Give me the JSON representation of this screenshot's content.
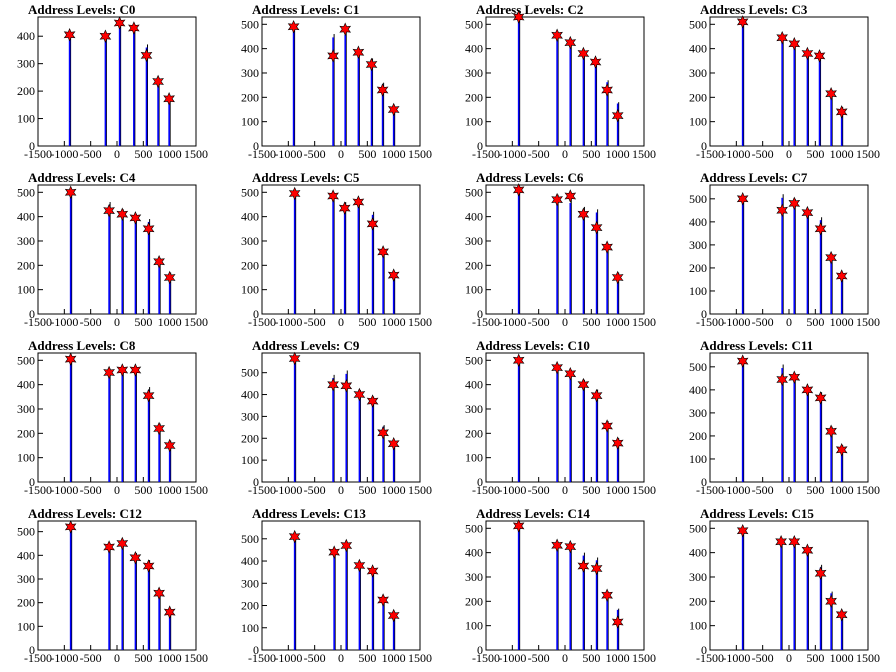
{
  "chart_data": [
    {
      "type": "bar",
      "title": "Address Levels: C0",
      "xlim": [
        -1500,
        1500
      ],
      "ylim": [
        0,
        470
      ],
      "yticks": [
        0,
        100,
        200,
        300,
        400
      ],
      "bins": [
        {
          "x": -900,
          "y": 405
        },
        {
          "x": -220,
          "y": 405
        },
        {
          "x": 50,
          "y": 450
        },
        {
          "x": 320,
          "y": 435
        },
        {
          "x": 560,
          "y": 370
        },
        {
          "x": 780,
          "y": 240
        },
        {
          "x": 990,
          "y": 178
        }
      ],
      "markers": [
        {
          "x": -900,
          "y": 405
        },
        {
          "x": -220,
          "y": 400
        },
        {
          "x": 50,
          "y": 448
        },
        {
          "x": 320,
          "y": 430
        },
        {
          "x": 560,
          "y": 330
        },
        {
          "x": 780,
          "y": 235
        },
        {
          "x": 990,
          "y": 172
        }
      ]
    },
    {
      "type": "bar",
      "title": "Address Levels: C1",
      "xlim": [
        -1500,
        1500
      ],
      "ylim": [
        0,
        530
      ],
      "yticks": [
        0,
        100,
        200,
        300,
        400,
        500
      ],
      "bins": [
        {
          "x": -900,
          "y": 490
        },
        {
          "x": -150,
          "y": 460
        },
        {
          "x": 80,
          "y": 470
        },
        {
          "x": 330,
          "y": 390
        },
        {
          "x": 580,
          "y": 360
        },
        {
          "x": 790,
          "y": 260
        },
        {
          "x": 1000,
          "y": 160
        }
      ],
      "markers": [
        {
          "x": -900,
          "y": 490
        },
        {
          "x": -150,
          "y": 370
        },
        {
          "x": 80,
          "y": 480
        },
        {
          "x": 330,
          "y": 385
        },
        {
          "x": 580,
          "y": 335
        },
        {
          "x": 790,
          "y": 230
        },
        {
          "x": 1000,
          "y": 150
        }
      ]
    },
    {
      "type": "bar",
      "title": "Address Levels: C2",
      "xlim": [
        -1500,
        1500
      ],
      "ylim": [
        0,
        530
      ],
      "yticks": [
        0,
        100,
        200,
        300,
        400,
        500
      ],
      "bins": [
        {
          "x": -880,
          "y": 530
        },
        {
          "x": -150,
          "y": 450
        },
        {
          "x": 100,
          "y": 430
        },
        {
          "x": 350,
          "y": 380
        },
        {
          "x": 580,
          "y": 350
        },
        {
          "x": 800,
          "y": 270
        },
        {
          "x": 1000,
          "y": 180
        }
      ],
      "markers": [
        {
          "x": -880,
          "y": 530
        },
        {
          "x": -150,
          "y": 455
        },
        {
          "x": 100,
          "y": 425
        },
        {
          "x": 350,
          "y": 380
        },
        {
          "x": 580,
          "y": 345
        },
        {
          "x": 800,
          "y": 230
        },
        {
          "x": 1000,
          "y": 125
        }
      ]
    },
    {
      "type": "bar",
      "title": "Address Levels: C3",
      "xlim": [
        -1500,
        1500
      ],
      "ylim": [
        0,
        530
      ],
      "yticks": [
        0,
        100,
        200,
        300,
        400,
        500
      ],
      "bins": [
        {
          "x": -880,
          "y": 510
        },
        {
          "x": -130,
          "y": 450
        },
        {
          "x": 100,
          "y": 430
        },
        {
          "x": 350,
          "y": 380
        },
        {
          "x": 580,
          "y": 380
        },
        {
          "x": 800,
          "y": 230
        },
        {
          "x": 1000,
          "y": 160
        }
      ],
      "markers": [
        {
          "x": -880,
          "y": 510
        },
        {
          "x": -130,
          "y": 445
        },
        {
          "x": 100,
          "y": 420
        },
        {
          "x": 350,
          "y": 380
        },
        {
          "x": 580,
          "y": 370
        },
        {
          "x": 800,
          "y": 215
        },
        {
          "x": 1000,
          "y": 140
        }
      ]
    },
    {
      "type": "bar",
      "title": "Address Levels: C4",
      "xlim": [
        -1500,
        1500
      ],
      "ylim": [
        0,
        530
      ],
      "yticks": [
        0,
        100,
        200,
        300,
        400,
        500
      ],
      "bins": [
        {
          "x": -880,
          "y": 510
        },
        {
          "x": -150,
          "y": 460
        },
        {
          "x": 100,
          "y": 430
        },
        {
          "x": 350,
          "y": 410
        },
        {
          "x": 600,
          "y": 390
        },
        {
          "x": 800,
          "y": 230
        },
        {
          "x": 1000,
          "y": 170
        }
      ],
      "markers": [
        {
          "x": -880,
          "y": 500
        },
        {
          "x": -150,
          "y": 425
        },
        {
          "x": 100,
          "y": 410
        },
        {
          "x": 350,
          "y": 395
        },
        {
          "x": 600,
          "y": 350
        },
        {
          "x": 800,
          "y": 215
        },
        {
          "x": 1000,
          "y": 150
        }
      ]
    },
    {
      "type": "bar",
      "title": "Address Levels: C5",
      "xlim": [
        -1500,
        1500
      ],
      "ylim": [
        0,
        530
      ],
      "yticks": [
        0,
        100,
        200,
        300,
        400,
        500
      ],
      "bins": [
        {
          "x": -880,
          "y": 500
        },
        {
          "x": -150,
          "y": 490
        },
        {
          "x": 70,
          "y": 460
        },
        {
          "x": 330,
          "y": 460
        },
        {
          "x": 600,
          "y": 420
        },
        {
          "x": 800,
          "y": 260
        },
        {
          "x": 1000,
          "y": 170
        }
      ],
      "markers": [
        {
          "x": -880,
          "y": 495
        },
        {
          "x": -150,
          "y": 485
        },
        {
          "x": 70,
          "y": 435
        },
        {
          "x": 330,
          "y": 460
        },
        {
          "x": 600,
          "y": 370
        },
        {
          "x": 800,
          "y": 255
        },
        {
          "x": 1000,
          "y": 160
        }
      ]
    },
    {
      "type": "bar",
      "title": "Address Levels: C6",
      "xlim": [
        -1500,
        1500
      ],
      "ylim": [
        0,
        530
      ],
      "yticks": [
        0,
        100,
        200,
        300,
        400,
        500
      ],
      "bins": [
        {
          "x": -880,
          "y": 510
        },
        {
          "x": -150,
          "y": 490
        },
        {
          "x": 100,
          "y": 470
        },
        {
          "x": 350,
          "y": 440
        },
        {
          "x": 600,
          "y": 430
        },
        {
          "x": 800,
          "y": 280
        },
        {
          "x": 1000,
          "y": 170
        }
      ],
      "markers": [
        {
          "x": -880,
          "y": 510
        },
        {
          "x": -150,
          "y": 470
        },
        {
          "x": 100,
          "y": 485
        },
        {
          "x": 350,
          "y": 410
        },
        {
          "x": 600,
          "y": 355
        },
        {
          "x": 800,
          "y": 275
        },
        {
          "x": 1000,
          "y": 150
        }
      ]
    },
    {
      "type": "bar",
      "title": "Address Levels: C7",
      "xlim": [
        -1500,
        1500
      ],
      "ylim": [
        0,
        560
      ],
      "yticks": [
        0,
        100,
        200,
        300,
        400,
        500
      ],
      "bins": [
        {
          "x": -880,
          "y": 500
        },
        {
          "x": -130,
          "y": 520
        },
        {
          "x": 100,
          "y": 500
        },
        {
          "x": 350,
          "y": 450
        },
        {
          "x": 600,
          "y": 420
        },
        {
          "x": 800,
          "y": 260
        },
        {
          "x": 1000,
          "y": 170
        }
      ],
      "markers": [
        {
          "x": -880,
          "y": 500
        },
        {
          "x": -130,
          "y": 450
        },
        {
          "x": 100,
          "y": 480
        },
        {
          "x": 350,
          "y": 440
        },
        {
          "x": 600,
          "y": 370
        },
        {
          "x": 800,
          "y": 245
        },
        {
          "x": 1000,
          "y": 165
        }
      ]
    },
    {
      "type": "bar",
      "title": "Address Levels: C8",
      "xlim": [
        -1500,
        1500
      ],
      "ylim": [
        0,
        530
      ],
      "yticks": [
        0,
        100,
        200,
        300,
        400,
        500
      ],
      "bins": [
        {
          "x": -880,
          "y": 510
        },
        {
          "x": -150,
          "y": 460
        },
        {
          "x": 100,
          "y": 470
        },
        {
          "x": 350,
          "y": 460
        },
        {
          "x": 600,
          "y": 390
        },
        {
          "x": 800,
          "y": 240
        },
        {
          "x": 1000,
          "y": 170
        }
      ],
      "markers": [
        {
          "x": -880,
          "y": 505
        },
        {
          "x": -150,
          "y": 450
        },
        {
          "x": 100,
          "y": 460
        },
        {
          "x": 350,
          "y": 460
        },
        {
          "x": 600,
          "y": 355
        },
        {
          "x": 800,
          "y": 220
        },
        {
          "x": 1000,
          "y": 150
        }
      ]
    },
    {
      "type": "bar",
      "title": "Address Levels: C9",
      "xlim": [
        -1500,
        1500
      ],
      "ylim": [
        0,
        590
      ],
      "yticks": [
        0,
        100,
        200,
        300,
        400,
        500
      ],
      "bins": [
        {
          "x": -880,
          "y": 570
        },
        {
          "x": -150,
          "y": 490
        },
        {
          "x": 100,
          "y": 510
        },
        {
          "x": 350,
          "y": 420
        },
        {
          "x": 600,
          "y": 390
        },
        {
          "x": 800,
          "y": 260
        },
        {
          "x": 1000,
          "y": 190
        }
      ],
      "markers": [
        {
          "x": -880,
          "y": 565
        },
        {
          "x": -150,
          "y": 445
        },
        {
          "x": 100,
          "y": 440
        },
        {
          "x": 350,
          "y": 400
        },
        {
          "x": 600,
          "y": 370
        },
        {
          "x": 800,
          "y": 225
        },
        {
          "x": 1000,
          "y": 175
        }
      ]
    },
    {
      "type": "bar",
      "title": "Address Levels: C10",
      "xlim": [
        -1500,
        1500
      ],
      "ylim": [
        0,
        530
      ],
      "yticks": [
        0,
        100,
        200,
        300,
        400,
        500
      ],
      "bins": [
        {
          "x": -880,
          "y": 510
        },
        {
          "x": -150,
          "y": 480
        },
        {
          "x": 100,
          "y": 460
        },
        {
          "x": 350,
          "y": 420
        },
        {
          "x": 600,
          "y": 380
        },
        {
          "x": 800,
          "y": 250
        },
        {
          "x": 1000,
          "y": 180
        }
      ],
      "markers": [
        {
          "x": -880,
          "y": 500
        },
        {
          "x": -150,
          "y": 470
        },
        {
          "x": 100,
          "y": 445
        },
        {
          "x": 350,
          "y": 400
        },
        {
          "x": 600,
          "y": 355
        },
        {
          "x": 800,
          "y": 230
        },
        {
          "x": 1000,
          "y": 160
        }
      ]
    },
    {
      "type": "bar",
      "title": "Address Levels: C11",
      "xlim": [
        -1500,
        1500
      ],
      "ylim": [
        0,
        560
      ],
      "yticks": [
        0,
        100,
        200,
        300,
        400,
        500
      ],
      "bins": [
        {
          "x": -880,
          "y": 530
        },
        {
          "x": -130,
          "y": 510
        },
        {
          "x": 100,
          "y": 470
        },
        {
          "x": 350,
          "y": 410
        },
        {
          "x": 600,
          "y": 390
        },
        {
          "x": 800,
          "y": 240
        },
        {
          "x": 1000,
          "y": 160
        }
      ],
      "markers": [
        {
          "x": -880,
          "y": 525
        },
        {
          "x": -130,
          "y": 445
        },
        {
          "x": 100,
          "y": 455
        },
        {
          "x": 350,
          "y": 400
        },
        {
          "x": 600,
          "y": 365
        },
        {
          "x": 800,
          "y": 220
        },
        {
          "x": 1000,
          "y": 140
        }
      ]
    },
    {
      "type": "bar",
      "title": "Address Levels: C12",
      "xlim": [
        -1500,
        1500
      ],
      "ylim": [
        0,
        545
      ],
      "yticks": [
        0,
        100,
        200,
        300,
        400,
        500
      ],
      "bins": [
        {
          "x": -880,
          "y": 520
        },
        {
          "x": -150,
          "y": 450
        },
        {
          "x": 100,
          "y": 460
        },
        {
          "x": 350,
          "y": 410
        },
        {
          "x": 600,
          "y": 380
        },
        {
          "x": 800,
          "y": 250
        },
        {
          "x": 1000,
          "y": 170
        }
      ],
      "markers": [
        {
          "x": -880,
          "y": 520
        },
        {
          "x": -150,
          "y": 435
        },
        {
          "x": 100,
          "y": 450
        },
        {
          "x": 350,
          "y": 390
        },
        {
          "x": 600,
          "y": 355
        },
        {
          "x": 800,
          "y": 240
        },
        {
          "x": 1000,
          "y": 160
        }
      ]
    },
    {
      "type": "bar",
      "title": "Address Levels: C13",
      "xlim": [
        -1500,
        1500
      ],
      "ylim": [
        0,
        580
      ],
      "yticks": [
        0,
        100,
        200,
        300,
        400,
        500
      ],
      "bins": [
        {
          "x": -880,
          "y": 520
        },
        {
          "x": -130,
          "y": 450
        },
        {
          "x": 100,
          "y": 480
        },
        {
          "x": 350,
          "y": 390
        },
        {
          "x": 600,
          "y": 370
        },
        {
          "x": 800,
          "y": 240
        },
        {
          "x": 1000,
          "y": 170
        }
      ],
      "markers": [
        {
          "x": -880,
          "y": 510
        },
        {
          "x": -130,
          "y": 440
        },
        {
          "x": 100,
          "y": 470
        },
        {
          "x": 350,
          "y": 380
        },
        {
          "x": 600,
          "y": 355
        },
        {
          "x": 800,
          "y": 225
        },
        {
          "x": 1000,
          "y": 155
        }
      ]
    },
    {
      "type": "bar",
      "title": "Address Levels: C14",
      "xlim": [
        -1500,
        1500
      ],
      "ylim": [
        0,
        530
      ],
      "yticks": [
        0,
        100,
        200,
        300,
        400,
        500
      ],
      "bins": [
        {
          "x": -880,
          "y": 520
        },
        {
          "x": -150,
          "y": 440
        },
        {
          "x": 100,
          "y": 440
        },
        {
          "x": 350,
          "y": 400
        },
        {
          "x": 600,
          "y": 380
        },
        {
          "x": 800,
          "y": 240
        },
        {
          "x": 1000,
          "y": 170
        }
      ],
      "markers": [
        {
          "x": -880,
          "y": 510
        },
        {
          "x": -150,
          "y": 430
        },
        {
          "x": 100,
          "y": 425
        },
        {
          "x": 350,
          "y": 345
        },
        {
          "x": 600,
          "y": 335
        },
        {
          "x": 800,
          "y": 225
        },
        {
          "x": 1000,
          "y": 115
        }
      ]
    },
    {
      "type": "bar",
      "title": "Address Levels: C15",
      "xlim": [
        -1500,
        1500
      ],
      "ylim": [
        0,
        530
      ],
      "yticks": [
        0,
        100,
        200,
        300,
        400,
        500
      ],
      "bins": [
        {
          "x": -880,
          "y": 500
        },
        {
          "x": -150,
          "y": 440
        },
        {
          "x": 100,
          "y": 460
        },
        {
          "x": 350,
          "y": 420
        },
        {
          "x": 600,
          "y": 350
        },
        {
          "x": 800,
          "y": 240
        },
        {
          "x": 1000,
          "y": 160
        }
      ],
      "markers": [
        {
          "x": -880,
          "y": 490
        },
        {
          "x": -150,
          "y": 445
        },
        {
          "x": 100,
          "y": 445
        },
        {
          "x": 350,
          "y": 410
        },
        {
          "x": 600,
          "y": 315
        },
        {
          "x": 800,
          "y": 200
        },
        {
          "x": 1000,
          "y": 145
        }
      ]
    }
  ],
  "style": {
    "bar_color": "#0000ff",
    "outline_color": "#000000",
    "marker_color": "#ff0000"
  },
  "xticks": [
    -1500,
    -1000,
    -500,
    0,
    500,
    1000,
    1500
  ],
  "xtick_labels": [
    "-1500",
    "-1000",
    "-500",
    "0",
    "500",
    "1000",
    "1500"
  ]
}
